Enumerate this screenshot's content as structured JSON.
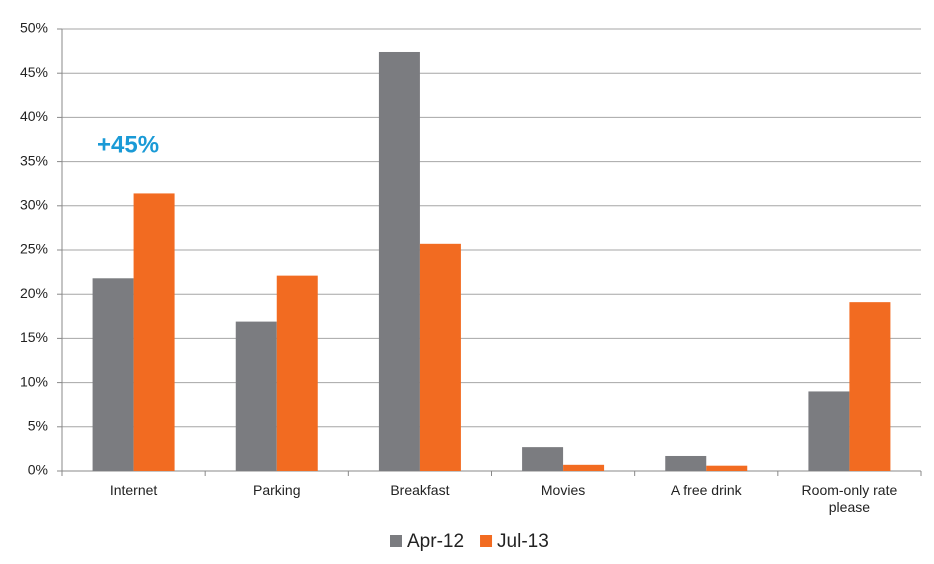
{
  "chart_data": {
    "type": "bar",
    "categories": [
      "Internet",
      "Parking",
      "Breakfast",
      "Movies",
      "A free drink",
      "Room-only rate please"
    ],
    "series": [
      {
        "name": "Apr-12",
        "color": "#7b7c80",
        "values": [
          21.8,
          16.9,
          47.4,
          2.7,
          1.7,
          9.0
        ]
      },
      {
        "name": "Jul-13",
        "color": "#f26b21",
        "values": [
          31.4,
          22.1,
          25.7,
          0.7,
          0.6,
          19.1
        ]
      }
    ],
    "ylim": [
      0,
      50
    ],
    "yticks": [
      {
        "value": 0,
        "label": "0%"
      },
      {
        "value": 5,
        "label": "5%"
      },
      {
        "value": 10,
        "label": "10%"
      },
      {
        "value": 15,
        "label": "15%"
      },
      {
        "value": 20,
        "label": "20%"
      },
      {
        "value": 25,
        "label": "25%"
      },
      {
        "value": 30,
        "label": "30%"
      },
      {
        "value": 35,
        "label": "35%"
      },
      {
        "value": 40,
        "label": "40%"
      },
      {
        "value": 45,
        "label": "45%"
      },
      {
        "value": 50,
        "label": "50%"
      }
    ],
    "grid": true,
    "legend": "bottom",
    "annotations": [
      {
        "text": "+45%",
        "color": "#1a9ad6"
      }
    ]
  }
}
